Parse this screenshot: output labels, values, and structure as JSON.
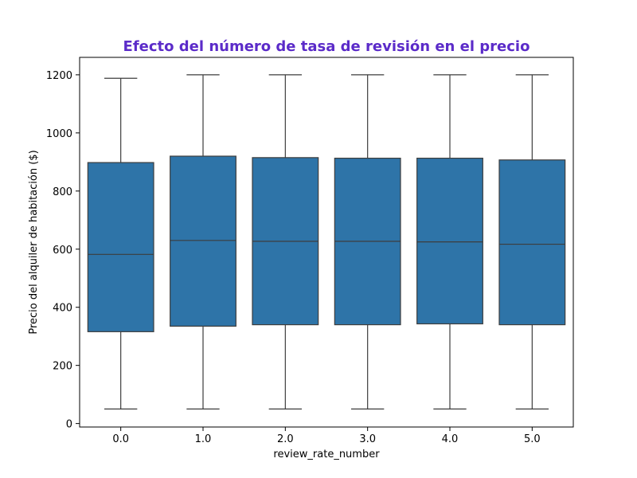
{
  "colors": {
    "title": "#5b2bc9",
    "box_fill": "#2e74a8",
    "line": "#3d3d3d"
  },
  "chart_data": {
    "type": "box",
    "title": "Efecto del número de tasa de revisión en el precio",
    "xlabel": "review_rate_number",
    "ylabel": "Precio del alquiler de habitación ($)",
    "categories": [
      "0.0",
      "1.0",
      "2.0",
      "3.0",
      "4.0",
      "5.0"
    ],
    "yticks": [
      "0",
      "200",
      "400",
      "600",
      "800",
      "1000",
      "1200"
    ],
    "ylim": [
      -12,
      1260
    ],
    "grid": false,
    "boxes": [
      {
        "category": "0.0",
        "min": 50,
        "q1": 316,
        "median": 582,
        "q3": 898,
        "max": 1188
      },
      {
        "category": "1.0",
        "min": 50,
        "q1": 335,
        "median": 630,
        "q3": 920,
        "max": 1200
      },
      {
        "category": "2.0",
        "min": 50,
        "q1": 340,
        "median": 627,
        "q3": 915,
        "max": 1200
      },
      {
        "category": "3.0",
        "min": 50,
        "q1": 340,
        "median": 627,
        "q3": 913,
        "max": 1200
      },
      {
        "category": "4.0",
        "min": 50,
        "q1": 343,
        "median": 625,
        "q3": 913,
        "max": 1200
      },
      {
        "category": "5.0",
        "min": 50,
        "q1": 340,
        "median": 617,
        "q3": 907,
        "max": 1200
      }
    ]
  }
}
